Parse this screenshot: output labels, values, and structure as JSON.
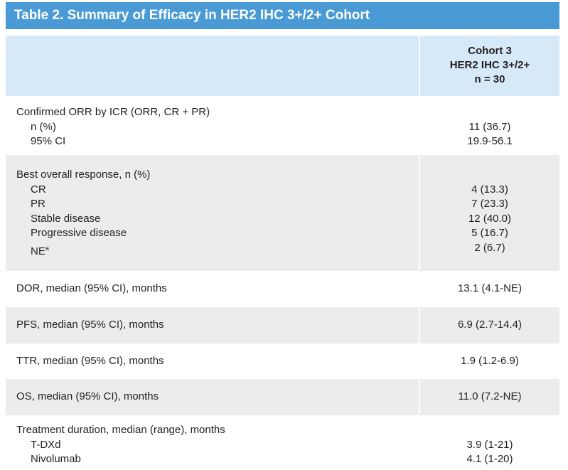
{
  "title": "Table 2. Summary of Efficacy in HER2 IHC 3+/2+ Cohort",
  "column_header": {
    "line1": "Cohort 3",
    "line2": "HER2 IHC 3+/2+",
    "line3": "n = 30"
  },
  "rows": [
    {
      "heading": "Confirmed ORR by ICR (ORR, CR + PR)",
      "items": [
        {
          "label": "n (%)",
          "value": "11 (36.7)"
        },
        {
          "label": "95% CI",
          "value": "19.9-56.1"
        }
      ]
    },
    {
      "heading": "Best overall response, n (%)",
      "items": [
        {
          "label": "CR",
          "value": "4 (13.3)"
        },
        {
          "label": "PR",
          "value": "7 (23.3)"
        },
        {
          "label": "Stable disease",
          "value": "12 (40.0)"
        },
        {
          "label": "Progressive disease",
          "value": "5 (16.7)"
        },
        {
          "label": "NE",
          "sup": "a",
          "value": "2 (6.7)"
        }
      ]
    },
    {
      "heading": "DOR, median (95% CI), months",
      "value": "13.1 (4.1-NE)"
    },
    {
      "heading": "PFS, median (95% CI), months",
      "value": "6.9 (2.7-14.4)"
    },
    {
      "heading": "TTR, median (95% CI), months",
      "value": "1.9 (1.2-6.9)"
    },
    {
      "heading": "OS, median (95% CI), months",
      "value": "11.0 (7.2-NE)"
    },
    {
      "heading": "Treatment duration, median (range), months",
      "items": [
        {
          "label": "T-DXd",
          "value": "3.9 (1-21)"
        },
        {
          "label": "Nivolumab",
          "value": "4.1 (1-20)"
        }
      ]
    }
  ],
  "colors": {
    "title_bg": "#4a9bd5",
    "header_bg": "#d6e9f8",
    "shaded_row_bg": "#ececec",
    "text": "#231f20"
  }
}
